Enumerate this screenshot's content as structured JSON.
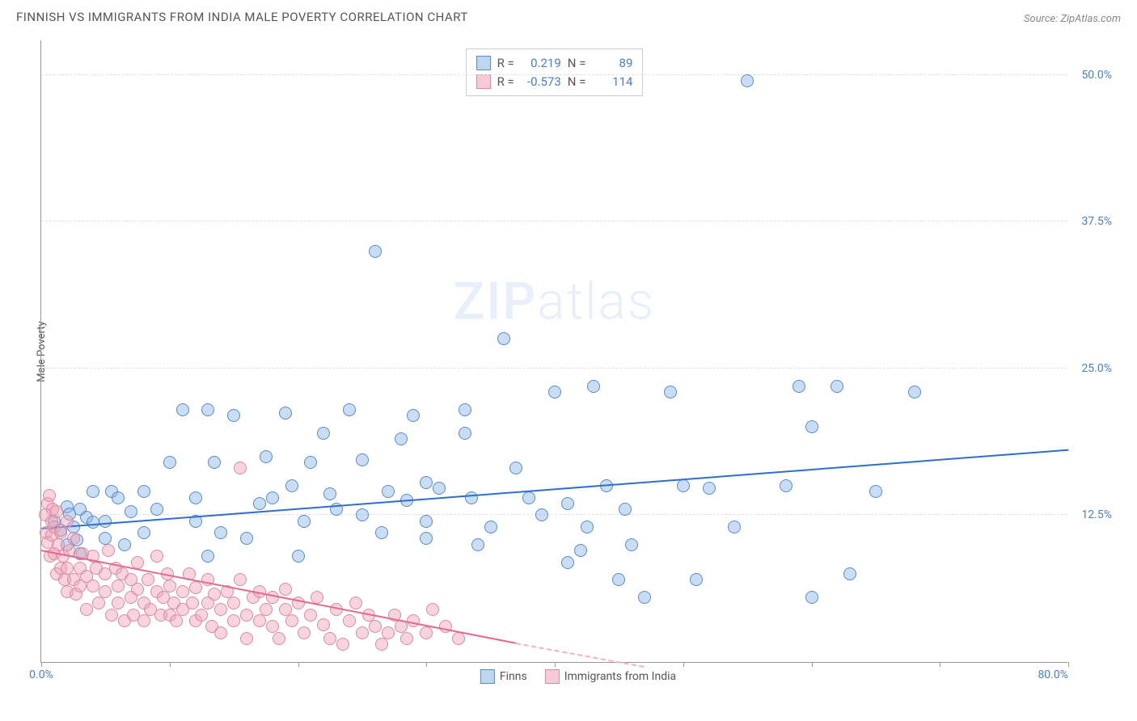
{
  "title": "FINNISH VS IMMIGRANTS FROM INDIA MALE POVERTY CORRELATION CHART",
  "source_label": "Source: ",
  "source_name": "ZipAtlas.com",
  "ylabel": "Male Poverty",
  "watermark_a": "ZIP",
  "watermark_b": "atlas",
  "chart": {
    "type": "scatter",
    "xlim": [
      0,
      80
    ],
    "ylim": [
      0,
      53
    ],
    "x_ticks": [
      0,
      10,
      20,
      30,
      40,
      50,
      60,
      70,
      80
    ],
    "x_tick_labels": {
      "0": "0.0%",
      "80": "80.0%"
    },
    "y_gridlines": [
      12.5,
      25.0,
      37.5,
      50.0
    ],
    "y_tick_labels": [
      "12.5%",
      "25.0%",
      "37.5%",
      "50.0%"
    ],
    "background_color": "#ffffff",
    "grid_color": "#e0e0e0",
    "axis_color": "#999999",
    "series": [
      {
        "key": "finns",
        "label": "Finns",
        "color_fill": "rgba(135,180,230,0.45)",
        "color_stroke": "#5a8bc9",
        "trend_color": "#2d6fd1",
        "R": "0.219",
        "N": "89",
        "trend": {
          "x0": 0,
          "y0": 11.3,
          "x1": 80,
          "y1": 18.0
        },
        "points": [
          [
            1,
            12.0
          ],
          [
            1.5,
            11.2
          ],
          [
            2,
            13.2
          ],
          [
            2,
            10.0
          ],
          [
            2.2,
            12.6
          ],
          [
            2.5,
            11.5
          ],
          [
            2.8,
            10.4
          ],
          [
            3,
            13.0
          ],
          [
            3,
            9.2
          ],
          [
            3.5,
            12.3
          ],
          [
            4,
            11.9
          ],
          [
            4,
            14.5
          ],
          [
            5,
            10.5
          ],
          [
            5,
            12.0
          ],
          [
            5.5,
            14.5
          ],
          [
            6,
            14.0
          ],
          [
            6.5,
            10.0
          ],
          [
            7,
            12.8
          ],
          [
            8,
            14.5
          ],
          [
            8,
            11.0
          ],
          [
            9,
            13.0
          ],
          [
            10,
            17.0
          ],
          [
            11,
            21.5
          ],
          [
            12,
            14.0
          ],
          [
            12,
            12.0
          ],
          [
            13,
            9.0
          ],
          [
            13,
            21.5
          ],
          [
            13.5,
            17.0
          ],
          [
            14,
            11.0
          ],
          [
            15,
            21.0
          ],
          [
            16,
            10.5
          ],
          [
            17,
            13.5
          ],
          [
            17.5,
            17.5
          ],
          [
            18,
            14.0
          ],
          [
            19,
            21.2
          ],
          [
            19.5,
            15.0
          ],
          [
            20,
            9.0
          ],
          [
            20.5,
            12.0
          ],
          [
            21,
            17.0
          ],
          [
            22,
            19.5
          ],
          [
            22.5,
            14.3
          ],
          [
            23,
            13.0
          ],
          [
            24,
            21.5
          ],
          [
            25,
            12.5
          ],
          [
            25,
            17.2
          ],
          [
            26,
            35.0
          ],
          [
            26.5,
            11.0
          ],
          [
            27,
            14.5
          ],
          [
            28,
            19.0
          ],
          [
            28.5,
            13.8
          ],
          [
            29,
            21.0
          ],
          [
            30,
            12.0
          ],
          [
            30,
            15.3
          ],
          [
            30,
            10.5
          ],
          [
            31,
            14.8
          ],
          [
            33,
            21.5
          ],
          [
            33,
            19.5
          ],
          [
            33.5,
            14.0
          ],
          [
            34,
            10.0
          ],
          [
            35,
            11.5
          ],
          [
            36,
            27.5
          ],
          [
            37,
            16.5
          ],
          [
            38,
            14.0
          ],
          [
            39,
            12.5
          ],
          [
            40,
            23.0
          ],
          [
            41,
            13.5
          ],
          [
            41,
            8.5
          ],
          [
            42,
            9.5
          ],
          [
            42.5,
            11.5
          ],
          [
            43,
            23.5
          ],
          [
            44,
            15.0
          ],
          [
            45,
            7.0
          ],
          [
            45.5,
            13.0
          ],
          [
            46,
            10.0
          ],
          [
            47,
            5.5
          ],
          [
            49,
            23.0
          ],
          [
            50,
            15.0
          ],
          [
            51,
            7.0
          ],
          [
            52,
            14.8
          ],
          [
            54,
            11.5
          ],
          [
            55,
            49.5
          ],
          [
            58,
            15.0
          ],
          [
            59,
            23.5
          ],
          [
            60,
            20.0
          ],
          [
            60,
            5.5
          ],
          [
            62,
            23.5
          ],
          [
            63,
            7.5
          ],
          [
            65,
            14.5
          ],
          [
            68,
            23.0
          ]
        ]
      },
      {
        "key": "india",
        "label": "Immigrants from India",
        "color_fill": "rgba(240,160,180,0.45)",
        "color_stroke": "#d98ba3",
        "trend_color": "#e66a8e",
        "R": "-0.573",
        "N": "114",
        "trend": {
          "x0": 0,
          "y0": 9.4,
          "x1": 37,
          "y1": 1.5
        },
        "trend_dash": {
          "x0": 37,
          "y0": 1.5,
          "x1": 47,
          "y1": -0.5
        },
        "points": [
          [
            0.3,
            12.5
          ],
          [
            0.4,
            11.0
          ],
          [
            0.5,
            13.5
          ],
          [
            0.5,
            10.2
          ],
          [
            0.6,
            14.2
          ],
          [
            0.7,
            9.0
          ],
          [
            0.8,
            12.0
          ],
          [
            0.8,
            10.8
          ],
          [
            0.9,
            13.0
          ],
          [
            1.0,
            11.5
          ],
          [
            1.0,
            9.2
          ],
          [
            1.2,
            12.8
          ],
          [
            1.2,
            7.5
          ],
          [
            1.3,
            10.0
          ],
          [
            1.5,
            8.0
          ],
          [
            1.5,
            11.0
          ],
          [
            1.7,
            9.0
          ],
          [
            1.8,
            7.0
          ],
          [
            2,
            12.0
          ],
          [
            2,
            8.0
          ],
          [
            2,
            6.0
          ],
          [
            2.2,
            9.5
          ],
          [
            2.5,
            7.0
          ],
          [
            2.5,
            10.5
          ],
          [
            2.7,
            5.8
          ],
          [
            3,
            8.0
          ],
          [
            3,
            6.5
          ],
          [
            3.2,
            9.2
          ],
          [
            3.5,
            7.3
          ],
          [
            3.5,
            4.5
          ],
          [
            4,
            9.0
          ],
          [
            4,
            6.5
          ],
          [
            4.3,
            8.0
          ],
          [
            4.5,
            5.0
          ],
          [
            5,
            7.5
          ],
          [
            5,
            6.0
          ],
          [
            5.2,
            9.5
          ],
          [
            5.5,
            4.0
          ],
          [
            5.8,
            8.0
          ],
          [
            6,
            6.5
          ],
          [
            6,
            5.0
          ],
          [
            6.3,
            7.5
          ],
          [
            6.5,
            3.5
          ],
          [
            7,
            7.0
          ],
          [
            7,
            5.5
          ],
          [
            7.2,
            4.0
          ],
          [
            7.5,
            8.5
          ],
          [
            7.5,
            6.2
          ],
          [
            8,
            5.0
          ],
          [
            8,
            3.5
          ],
          [
            8.3,
            7.0
          ],
          [
            8.5,
            4.5
          ],
          [
            9,
            6.0
          ],
          [
            9,
            9.0
          ],
          [
            9.3,
            4.0
          ],
          [
            9.5,
            5.5
          ],
          [
            9.8,
            7.5
          ],
          [
            10,
            4.0
          ],
          [
            10,
            6.5
          ],
          [
            10.3,
            5.0
          ],
          [
            10.5,
            3.5
          ],
          [
            11,
            6.0
          ],
          [
            11,
            4.5
          ],
          [
            11.5,
            7.5
          ],
          [
            11.8,
            5.0
          ],
          [
            12,
            3.5
          ],
          [
            12,
            6.3
          ],
          [
            12.5,
            4.0
          ],
          [
            13,
            7.0
          ],
          [
            13,
            5.0
          ],
          [
            13.3,
            3.0
          ],
          [
            13.5,
            5.8
          ],
          [
            14,
            4.5
          ],
          [
            14,
            2.5
          ],
          [
            14.5,
            6.0
          ],
          [
            15,
            3.5
          ],
          [
            15,
            5.0
          ],
          [
            15.5,
            16.5
          ],
          [
            15.5,
            7.0
          ],
          [
            16,
            4.0
          ],
          [
            16,
            2.0
          ],
          [
            16.5,
            5.5
          ],
          [
            17,
            3.5
          ],
          [
            17,
            6.0
          ],
          [
            17.5,
            4.5
          ],
          [
            18,
            3.0
          ],
          [
            18,
            5.5
          ],
          [
            18.5,
            2.0
          ],
          [
            19,
            4.5
          ],
          [
            19,
            6.2
          ],
          [
            19.5,
            3.5
          ],
          [
            20,
            5.0
          ],
          [
            20.5,
            2.5
          ],
          [
            21,
            4.0
          ],
          [
            21.5,
            5.5
          ],
          [
            22,
            3.2
          ],
          [
            22.5,
            2.0
          ],
          [
            23,
            4.5
          ],
          [
            23.5,
            1.5
          ],
          [
            24,
            3.5
          ],
          [
            24.5,
            5.0
          ],
          [
            25,
            2.5
          ],
          [
            25.5,
            4.0
          ],
          [
            26,
            3.0
          ],
          [
            26.5,
            1.5
          ],
          [
            27,
            2.5
          ],
          [
            27.5,
            4.0
          ],
          [
            28,
            3.0
          ],
          [
            28.5,
            2.0
          ],
          [
            29,
            3.5
          ],
          [
            30,
            2.5
          ],
          [
            30.5,
            4.5
          ],
          [
            31.5,
            3.0
          ],
          [
            32.5,
            2.0
          ]
        ]
      }
    ],
    "stats_labels": {
      "R": "R =",
      "N": "N ="
    }
  },
  "legend": {
    "series1": "Finns",
    "series2": "Immigrants from India"
  }
}
